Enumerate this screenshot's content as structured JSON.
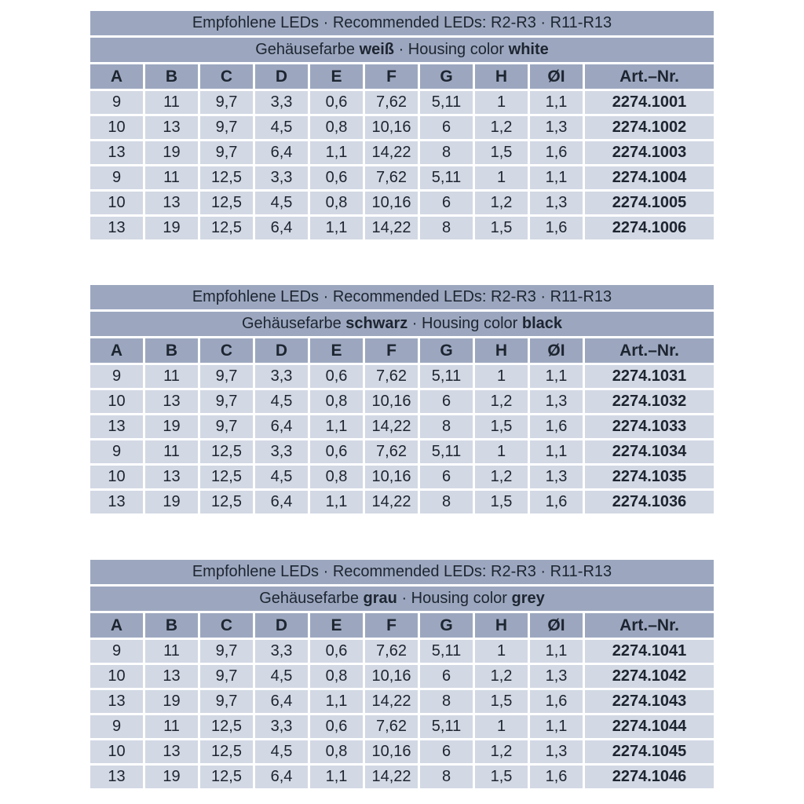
{
  "colors": {
    "header_bg": "#9ca7bf",
    "cell_bg": "#d2d8e4",
    "text_dark": "#1d2531",
    "gap": "#ffffff"
  },
  "tables": [
    {
      "title": "Empfohlene LEDs · Recommended LEDs: R2-R3 · R11-R13",
      "subtitle": {
        "prefix": "Gehäusefarbe ",
        "value_de": "weiß",
        "middle": " · Housing color ",
        "value_en": "white"
      },
      "columns": [
        "A",
        "B",
        "C",
        "D",
        "E",
        "F",
        "G",
        "H",
        "ØI",
        "Art.–Nr."
      ],
      "rows": [
        [
          "9",
          "11",
          "9,7",
          "3,3",
          "0,6",
          "7,62",
          "5,11",
          "1",
          "1,1",
          "2274.1001"
        ],
        [
          "10",
          "13",
          "9,7",
          "4,5",
          "0,8",
          "10,16",
          "6",
          "1,2",
          "1,3",
          "2274.1002"
        ],
        [
          "13",
          "19",
          "9,7",
          "6,4",
          "1,1",
          "14,22",
          "8",
          "1,5",
          "1,6",
          "2274.1003"
        ],
        [
          "9",
          "11",
          "12,5",
          "3,3",
          "0,6",
          "7,62",
          "5,11",
          "1",
          "1,1",
          "2274.1004"
        ],
        [
          "10",
          "13",
          "12,5",
          "4,5",
          "0,8",
          "10,16",
          "6",
          "1,2",
          "1,3",
          "2274.1005"
        ],
        [
          "13",
          "19",
          "12,5",
          "6,4",
          "1,1",
          "14,22",
          "8",
          "1,5",
          "1,6",
          "2274.1006"
        ]
      ]
    },
    {
      "title": "Empfohlene LEDs · Recommended LEDs: R2-R3 · R11-R13",
      "subtitle": {
        "prefix": "Gehäusefarbe ",
        "value_de": "schwarz",
        "middle": " · Housing color ",
        "value_en": "black"
      },
      "columns": [
        "A",
        "B",
        "C",
        "D",
        "E",
        "F",
        "G",
        "H",
        "ØI",
        "Art.–Nr."
      ],
      "rows": [
        [
          "9",
          "11",
          "9,7",
          "3,3",
          "0,6",
          "7,62",
          "5,11",
          "1",
          "1,1",
          "2274.1031"
        ],
        [
          "10",
          "13",
          "9,7",
          "4,5",
          "0,8",
          "10,16",
          "6",
          "1,2",
          "1,3",
          "2274.1032"
        ],
        [
          "13",
          "19",
          "9,7",
          "6,4",
          "1,1",
          "14,22",
          "8",
          "1,5",
          "1,6",
          "2274.1033"
        ],
        [
          "9",
          "11",
          "12,5",
          "3,3",
          "0,6",
          "7,62",
          "5,11",
          "1",
          "1,1",
          "2274.1034"
        ],
        [
          "10",
          "13",
          "12,5",
          "4,5",
          "0,8",
          "10,16",
          "6",
          "1,2",
          "1,3",
          "2274.1035"
        ],
        [
          "13",
          "19",
          "12,5",
          "6,4",
          "1,1",
          "14,22",
          "8",
          "1,5",
          "1,6",
          "2274.1036"
        ]
      ]
    },
    {
      "title": "Empfohlene LEDs · Recommended LEDs: R2-R3 · R11-R13",
      "subtitle": {
        "prefix": "Gehäusefarbe ",
        "value_de": "grau",
        "middle": " · Housing color ",
        "value_en": "grey"
      },
      "columns": [
        "A",
        "B",
        "C",
        "D",
        "E",
        "F",
        "G",
        "H",
        "ØI",
        "Art.–Nr."
      ],
      "rows": [
        [
          "9",
          "11",
          "9,7",
          "3,3",
          "0,6",
          "7,62",
          "5,11",
          "1",
          "1,1",
          "2274.1041"
        ],
        [
          "10",
          "13",
          "9,7",
          "4,5",
          "0,8",
          "10,16",
          "6",
          "1,2",
          "1,3",
          "2274.1042"
        ],
        [
          "13",
          "19",
          "9,7",
          "6,4",
          "1,1",
          "14,22",
          "8",
          "1,5",
          "1,6",
          "2274.1043"
        ],
        [
          "9",
          "11",
          "12,5",
          "3,3",
          "0,6",
          "7,62",
          "5,11",
          "1",
          "1,1",
          "2274.1044"
        ],
        [
          "10",
          "13",
          "12,5",
          "4,5",
          "0,8",
          "10,16",
          "6",
          "1,2",
          "1,3",
          "2274.1045"
        ],
        [
          "13",
          "19",
          "12,5",
          "6,4",
          "1,1",
          "14,22",
          "8",
          "1,5",
          "1,6",
          "2274.1046"
        ]
      ]
    }
  ]
}
